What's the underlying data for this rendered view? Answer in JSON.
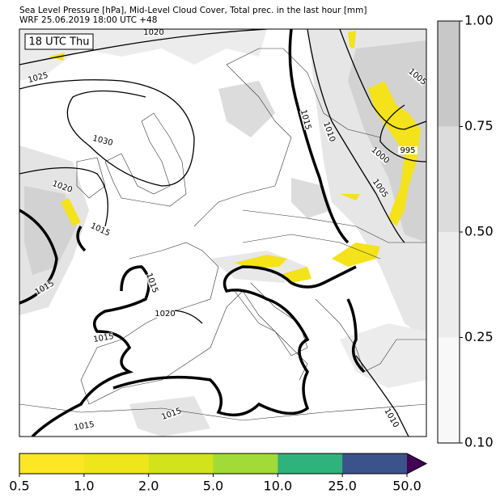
{
  "header": {
    "title": "Sea Level Pressure [hPa], Mid-Level Cloud Cover, Total prec. in the last hour [mm]",
    "subtitle": "WRF 25.06.2019 18:00 UTC +48"
  },
  "map": {
    "time_label": "18 UTC Thu",
    "contour_labels": [
      "1020",
      "1025",
      "1030",
      "1020",
      "1015",
      "1015",
      "1015",
      "1020",
      "1015",
      "1015",
      "1015",
      "1015",
      "1010",
      "1005",
      "1000",
      "995",
      "1005",
      "1010"
    ]
  },
  "right_colorbar": {
    "labels": [
      "1.00",
      "0.75",
      "0.50",
      "0.25",
      "0.10"
    ],
    "colors": [
      "#c8c8c8",
      "#dcdcdc",
      "#ececec",
      "#f8f8f8"
    ]
  },
  "bottom_colorbar": {
    "labels": [
      "0.5",
      "1.0",
      "2.0",
      "5.0",
      "10.0",
      "25.0",
      "50.0"
    ],
    "colors": [
      "#fde725",
      "#eee51b",
      "#d2e21b",
      "#a2da37",
      "#2eb37c",
      "#3b528b"
    ],
    "extend_color": "#440154"
  }
}
